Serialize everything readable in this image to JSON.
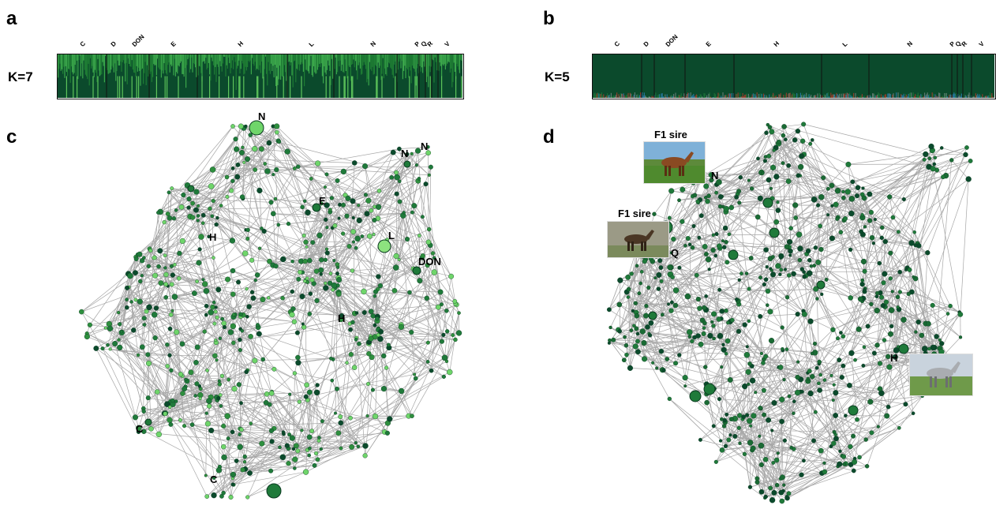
{
  "panels": {
    "a": "a",
    "b": "b",
    "c": "c",
    "d": "d"
  },
  "structure": {
    "a": {
      "k_label": "K=7",
      "groups": [
        "C",
        "D",
        "DON",
        "E",
        "H",
        "L",
        "N",
        "P",
        "Q",
        "R",
        "V"
      ]
    },
    "b": {
      "k_label": "K=5",
      "groups": [
        "C",
        "D",
        "DON",
        "E",
        "H",
        "L",
        "N",
        "P",
        "Q",
        "R",
        "V"
      ]
    }
  },
  "network_c": {
    "labels": {
      "n_top": "N",
      "n_right1": "N",
      "n_right2": "N",
      "e": "E",
      "h_top": "H",
      "l": "L",
      "don": "DON",
      "h_mid": "H",
      "c_left": "C",
      "c_bottom": "C"
    }
  },
  "network_d": {
    "labels": {
      "n": "N",
      "q": "Q",
      "h": "H"
    },
    "captions": {
      "sire1": "F1 sire",
      "sire2": "F1 sire"
    }
  },
  "colors": {
    "dark_green": "#0b4a2c",
    "mid_green": "#1f7a3a",
    "light_green": "#6fd56a",
    "edge_gray": "#8a8a8a"
  }
}
